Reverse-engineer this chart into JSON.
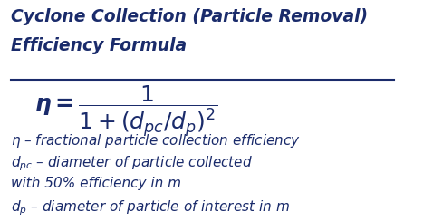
{
  "title_line1": "Cyclone Collection (Particle Removal)",
  "title_line2": "Efficiency Formula",
  "desc1": "$\\eta$ – fractional particle collection efficiency",
  "desc2": "$d_{pc}$ – diameter of particle collected",
  "desc3": "with 50% efficiency in m",
  "desc4": "$d_{p}$ – diameter of particle of interest in m",
  "text_color": "#1a2b6b",
  "bg_color": "#ffffff",
  "title_fontsize": 13.5,
  "formula_fontsize": 18,
  "desc_fontsize": 11
}
